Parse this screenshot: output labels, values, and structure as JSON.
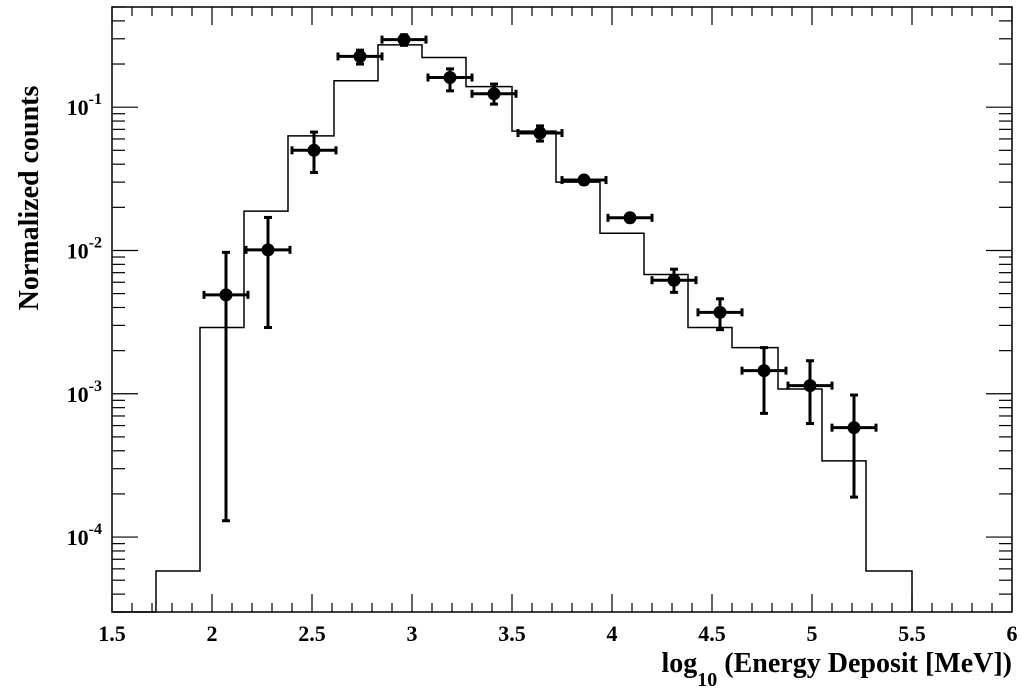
{
  "chart_data": {
    "type": "scatter",
    "xlabel": "log",
    "xlabel_subscript": "10",
    "xlabel_rest": " (Energy Deposit [MeV])",
    "ylabel": "Normalized counts",
    "xlim": [
      1.5,
      6
    ],
    "ylim": [
      3e-05,
      0.5
    ],
    "yscale": "log",
    "grid": false,
    "x_ticks": [
      {
        "value": 1.5,
        "label": "1.5"
      },
      {
        "value": 2,
        "label": "2"
      },
      {
        "value": 2.5,
        "label": "2.5"
      },
      {
        "value": 3,
        "label": "3"
      },
      {
        "value": 3.5,
        "label": "3.5"
      },
      {
        "value": 4,
        "label": "4"
      },
      {
        "value": 4.5,
        "label": "4.5"
      },
      {
        "value": 5,
        "label": "5"
      },
      {
        "value": 5.5,
        "label": "5.5"
      },
      {
        "value": 6,
        "label": "6"
      }
    ],
    "y_ticks": [
      {
        "value": 0.0001,
        "base": "10",
        "exp": "-4"
      },
      {
        "value": 0.001,
        "base": "10",
        "exp": "-3"
      },
      {
        "value": 0.01,
        "base": "10",
        "exp": "-2"
      },
      {
        "value": 0.1,
        "base": "10",
        "exp": "-1"
      }
    ],
    "histogram": {
      "bin_edges": [
        1.5,
        1.72,
        1.94,
        2.16,
        2.38,
        2.61,
        2.83,
        3.05,
        3.27,
        3.5,
        3.72,
        3.94,
        4.16,
        4.38,
        4.6,
        4.83,
        5.05,
        5.27,
        5.5
      ],
      "values": [
        0,
        5.8e-05,
        0.0029,
        0.0188,
        0.063,
        0.153,
        0.272,
        0.222,
        0.139,
        0.068,
        0.03,
        0.0132,
        0.0068,
        0.0029,
        0.0021,
        0.00108,
        0.00034,
        5.8e-05
      ]
    },
    "points": [
      {
        "x": 2.07,
        "y": 0.0049,
        "xerr": 0.11,
        "ylo": 0.00013,
        "yhi": 0.0097
      },
      {
        "x": 2.28,
        "y": 0.0101,
        "xerr": 0.11,
        "ylo": 0.0029,
        "yhi": 0.017
      },
      {
        "x": 2.51,
        "y": 0.05,
        "xerr": 0.11,
        "ylo": 0.035,
        "yhi": 0.067
      },
      {
        "x": 2.74,
        "y": 0.226,
        "xerr": 0.11,
        "ylo": 0.2,
        "yhi": 0.25
      },
      {
        "x": 2.96,
        "y": 0.296,
        "xerr": 0.11,
        "ylo": 0.27,
        "yhi": 0.32
      },
      {
        "x": 3.19,
        "y": 0.161,
        "xerr": 0.11,
        "ylo": 0.13,
        "yhi": 0.185
      },
      {
        "x": 3.41,
        "y": 0.124,
        "xerr": 0.11,
        "ylo": 0.105,
        "yhi": 0.145
      },
      {
        "x": 3.64,
        "y": 0.066,
        "xerr": 0.11,
        "ylo": 0.058,
        "yhi": 0.074
      },
      {
        "x": 3.86,
        "y": 0.031,
        "xerr": 0.11,
        "ylo": 0.029,
        "yhi": 0.033
      },
      {
        "x": 4.09,
        "y": 0.0169,
        "xerr": 0.11,
        "ylo": 0.0158,
        "yhi": 0.018
      },
      {
        "x": 4.31,
        "y": 0.0062,
        "xerr": 0.11,
        "ylo": 0.0051,
        "yhi": 0.0074
      },
      {
        "x": 4.54,
        "y": 0.0037,
        "xerr": 0.11,
        "ylo": 0.0028,
        "yhi": 0.0046
      },
      {
        "x": 4.76,
        "y": 0.00145,
        "xerr": 0.11,
        "ylo": 0.00073,
        "yhi": 0.0021
      },
      {
        "x": 4.99,
        "y": 0.00114,
        "xerr": 0.11,
        "ylo": 0.00062,
        "yhi": 0.0017
      },
      {
        "x": 5.21,
        "y": 0.00058,
        "xerr": 0.11,
        "ylo": 0.00019,
        "yhi": 0.00098
      }
    ]
  }
}
